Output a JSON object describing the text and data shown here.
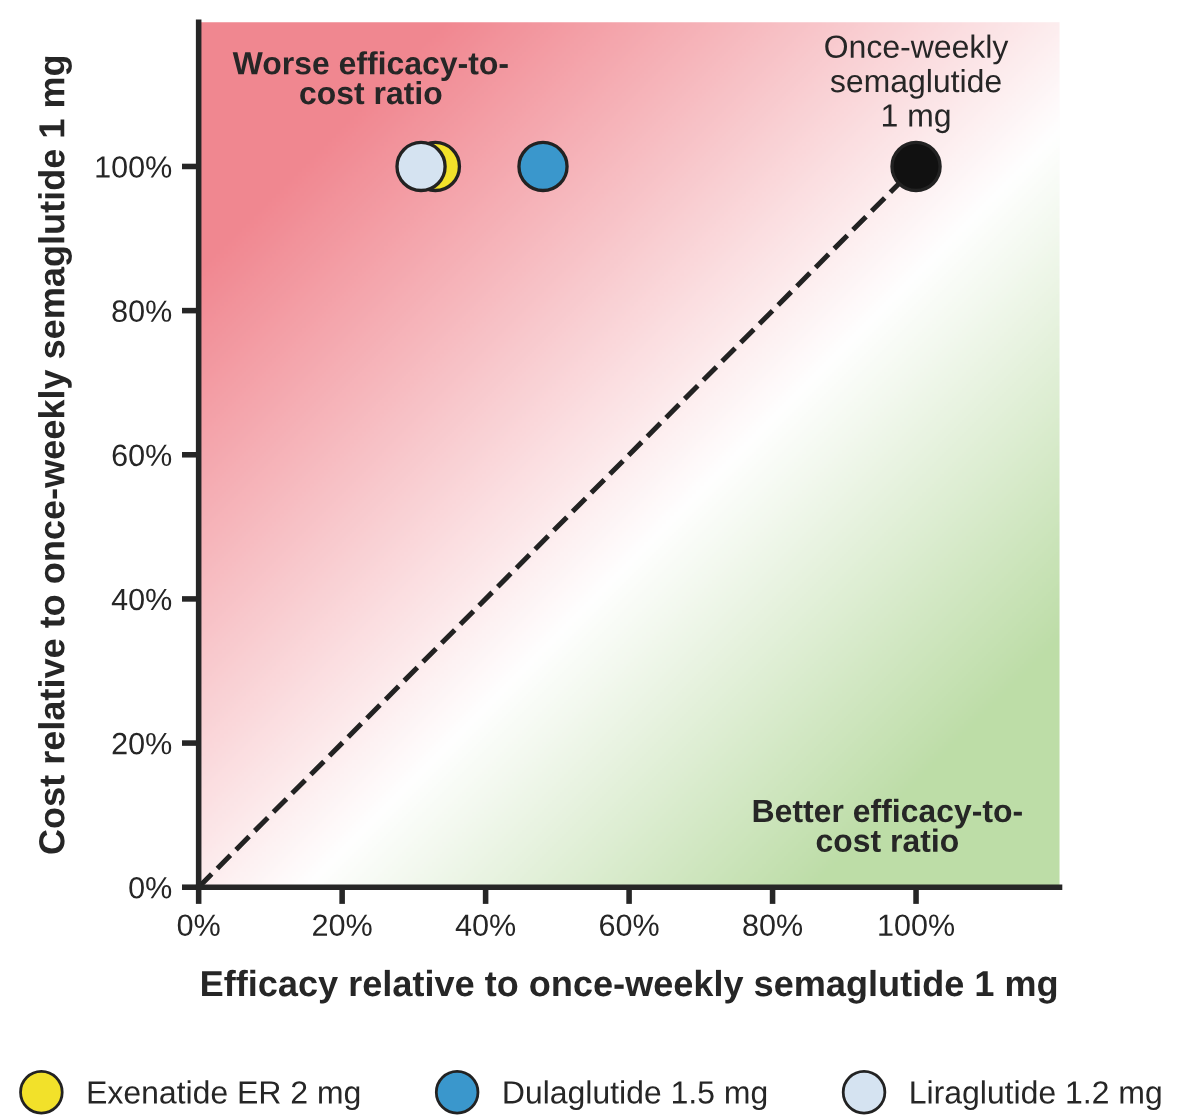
{
  "chart_data": {
    "type": "scatter",
    "xlabel": "Efficacy relative to once-weekly semaglutide 1 mg",
    "ylabel": "Cost relative to once-weekly semaglutide 1 mg",
    "xlim": [
      0,
      120
    ],
    "ylim": [
      0,
      120
    ],
    "xticks": [
      {
        "value": 0,
        "label": "0%"
      },
      {
        "value": 20,
        "label": "20%"
      },
      {
        "value": 40,
        "label": "40%"
      },
      {
        "value": 60,
        "label": "60%"
      },
      {
        "value": 80,
        "label": "80%"
      },
      {
        "value": 100,
        "label": "100%"
      }
    ],
    "yticks": [
      {
        "value": 0,
        "label": "0%"
      },
      {
        "value": 20,
        "label": "20%"
      },
      {
        "value": 40,
        "label": "40%"
      },
      {
        "value": 60,
        "label": "60%"
      },
      {
        "value": 80,
        "label": "80%"
      },
      {
        "value": 100,
        "label": "100%"
      }
    ],
    "series": [
      {
        "type": "line",
        "color": "#222222",
        "line_style": "dashed",
        "marker": "none",
        "x": [
          0,
          100
        ],
        "values": [
          0,
          100
        ]
      },
      {
        "name": "Exenatide ER 2 mg",
        "color": "#f2e12a",
        "x": [
          33
        ],
        "values": [
          100
        ]
      },
      {
        "name": "Dulaglutide 1.5 mg",
        "color": "#3a97cc",
        "x": [
          48
        ],
        "values": [
          100
        ]
      },
      {
        "name": "Liraglutide 1.2 mg",
        "color": "#d5e3f1",
        "x": [
          31
        ],
        "values": [
          100
        ]
      },
      {
        "color": "#111111",
        "x": [
          100
        ],
        "values": [
          100
        ]
      }
    ],
    "marker": "circle",
    "legend": "bottom",
    "grid": false,
    "annotations": [
      "Worse efficacy-to-\ncost ratio",
      "Better efficacy-to-\ncost ratio",
      {
        "text": "Once-weekly\nsemaglutide\n1 mg",
        "x": 100,
        "y": 100
      }
    ]
  }
}
